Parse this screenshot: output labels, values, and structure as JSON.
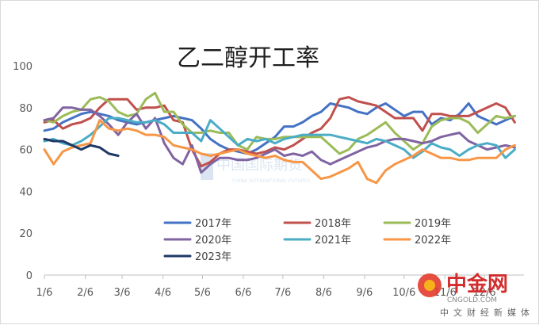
{
  "chart_data": {
    "type": "line",
    "title": "乙二醇开工率",
    "xlabel": "",
    "ylabel": "",
    "ylim": [
      0,
      100
    ],
    "yticks": [
      0,
      20,
      40,
      60,
      80,
      100
    ],
    "xlim": [
      1,
      53
    ],
    "xticks": [
      {
        "week": 1,
        "label": "1/6"
      },
      {
        "week": 5.43,
        "label": "2/6"
      },
      {
        "week": 9.43,
        "label": "3/6"
      },
      {
        "week": 13.86,
        "label": "4/6"
      },
      {
        "week": 18.14,
        "label": "5/6"
      },
      {
        "week": 22.57,
        "label": "6/6"
      },
      {
        "week": 26.86,
        "label": "7/6"
      },
      {
        "week": 31.29,
        "label": "8/6"
      },
      {
        "week": 35.71,
        "label": "9/6"
      },
      {
        "week": 40,
        "label": "10/6"
      },
      {
        "week": 44.43,
        "label": "11/6"
      },
      {
        "week": 48.71,
        "label": "12/6"
      }
    ],
    "grid": false,
    "legend_position": "bottom-center",
    "series": [
      {
        "name": "2017年",
        "color": "#4472C4",
        "values": [
          69,
          70,
          73,
          75,
          77,
          78,
          77,
          76,
          74,
          73,
          72,
          73,
          74,
          75,
          76,
          75,
          74,
          70,
          65,
          62,
          60,
          59,
          58,
          60,
          63,
          66,
          71,
          71,
          73,
          76,
          78,
          82,
          81,
          80,
          78,
          77,
          80,
          82,
          79,
          76,
          78,
          78,
          72,
          75,
          74,
          77,
          82,
          76,
          74,
          72,
          74,
          76
        ]
      },
      {
        "name": "2018年",
        "color": "#C0504D",
        "values": [
          73,
          74,
          70,
          72,
          73,
          75,
          80,
          84,
          84,
          84,
          79,
          80,
          80,
          81,
          74,
          73,
          60,
          52,
          54,
          58,
          60,
          60,
          59,
          58,
          59,
          61,
          60,
          62,
          65,
          68,
          70,
          75,
          84,
          85,
          83,
          82,
          81,
          78,
          75,
          75,
          75,
          69,
          77,
          77,
          76,
          76,
          76,
          78,
          80,
          82,
          80,
          73
        ]
      },
      {
        "name": "2019年",
        "color": "#9BBB59",
        "values": [
          74,
          73,
          76,
          78,
          79,
          84,
          85,
          83,
          78,
          76,
          77,
          84,
          87,
          78,
          78,
          72,
          68,
          68,
          69,
          68,
          68,
          62,
          60,
          66,
          65,
          65,
          66,
          66,
          66,
          66,
          66,
          62,
          58,
          60,
          65,
          67,
          70,
          73,
          68,
          64,
          60,
          63,
          71,
          74,
          75,
          75,
          73,
          68,
          72,
          76,
          75,
          76
        ]
      },
      {
        "name": "2020年",
        "color": "#8064A2",
        "values": [
          74,
          75,
          80,
          80,
          79,
          79,
          76,
          72,
          67,
          73,
          77,
          70,
          75,
          63,
          56,
          53,
          62,
          49,
          53,
          56,
          56,
          55,
          55,
          56,
          58,
          60,
          57,
          58,
          57,
          59,
          55,
          53,
          55,
          57,
          59,
          61,
          62,
          64,
          65,
          65,
          64,
          63,
          64,
          66,
          67,
          68,
          64,
          62,
          60,
          61,
          62,
          61
        ]
      },
      {
        "name": "2021年",
        "color": "#4BACC6",
        "values": [
          64,
          65,
          63,
          62,
          64,
          67,
          71,
          75,
          75,
          74,
          73,
          73,
          74,
          72,
          68,
          68,
          68,
          64,
          74,
          70,
          66,
          62,
          65,
          64,
          65,
          63,
          65,
          66,
          67,
          67,
          67,
          67,
          66,
          65,
          64,
          63,
          65,
          64,
          62,
          60,
          56,
          59,
          63,
          61,
          60,
          57,
          60,
          62,
          63,
          62,
          56,
          60
        ]
      },
      {
        "name": "2022年",
        "color": "#F79646",
        "values": [
          60,
          53,
          59,
          61,
          62,
          63,
          74,
          70,
          69,
          70,
          69,
          67,
          67,
          66,
          62,
          61,
          60,
          58,
          57,
          58,
          59,
          60,
          58,
          57,
          56,
          57,
          55,
          54,
          54,
          50,
          46,
          47,
          49,
          51,
          54,
          46,
          44,
          50,
          53,
          55,
          57,
          60,
          58,
          56,
          56,
          55,
          55,
          56,
          56,
          56,
          60,
          62
        ]
      },
      {
        "name": "2023年",
        "color": "#1F3864",
        "values": [
          65,
          64,
          64,
          62,
          60,
          62,
          61,
          58,
          57
        ]
      }
    ]
  },
  "watermarks": {
    "center_text": "中国国际期货",
    "center_sub": "CHINA INTERNATIONAL FUTURES",
    "brand_name": "中金网",
    "brand_url": "CNGOLD.COM",
    "brand_tagline": "中文财经新媒体"
  }
}
